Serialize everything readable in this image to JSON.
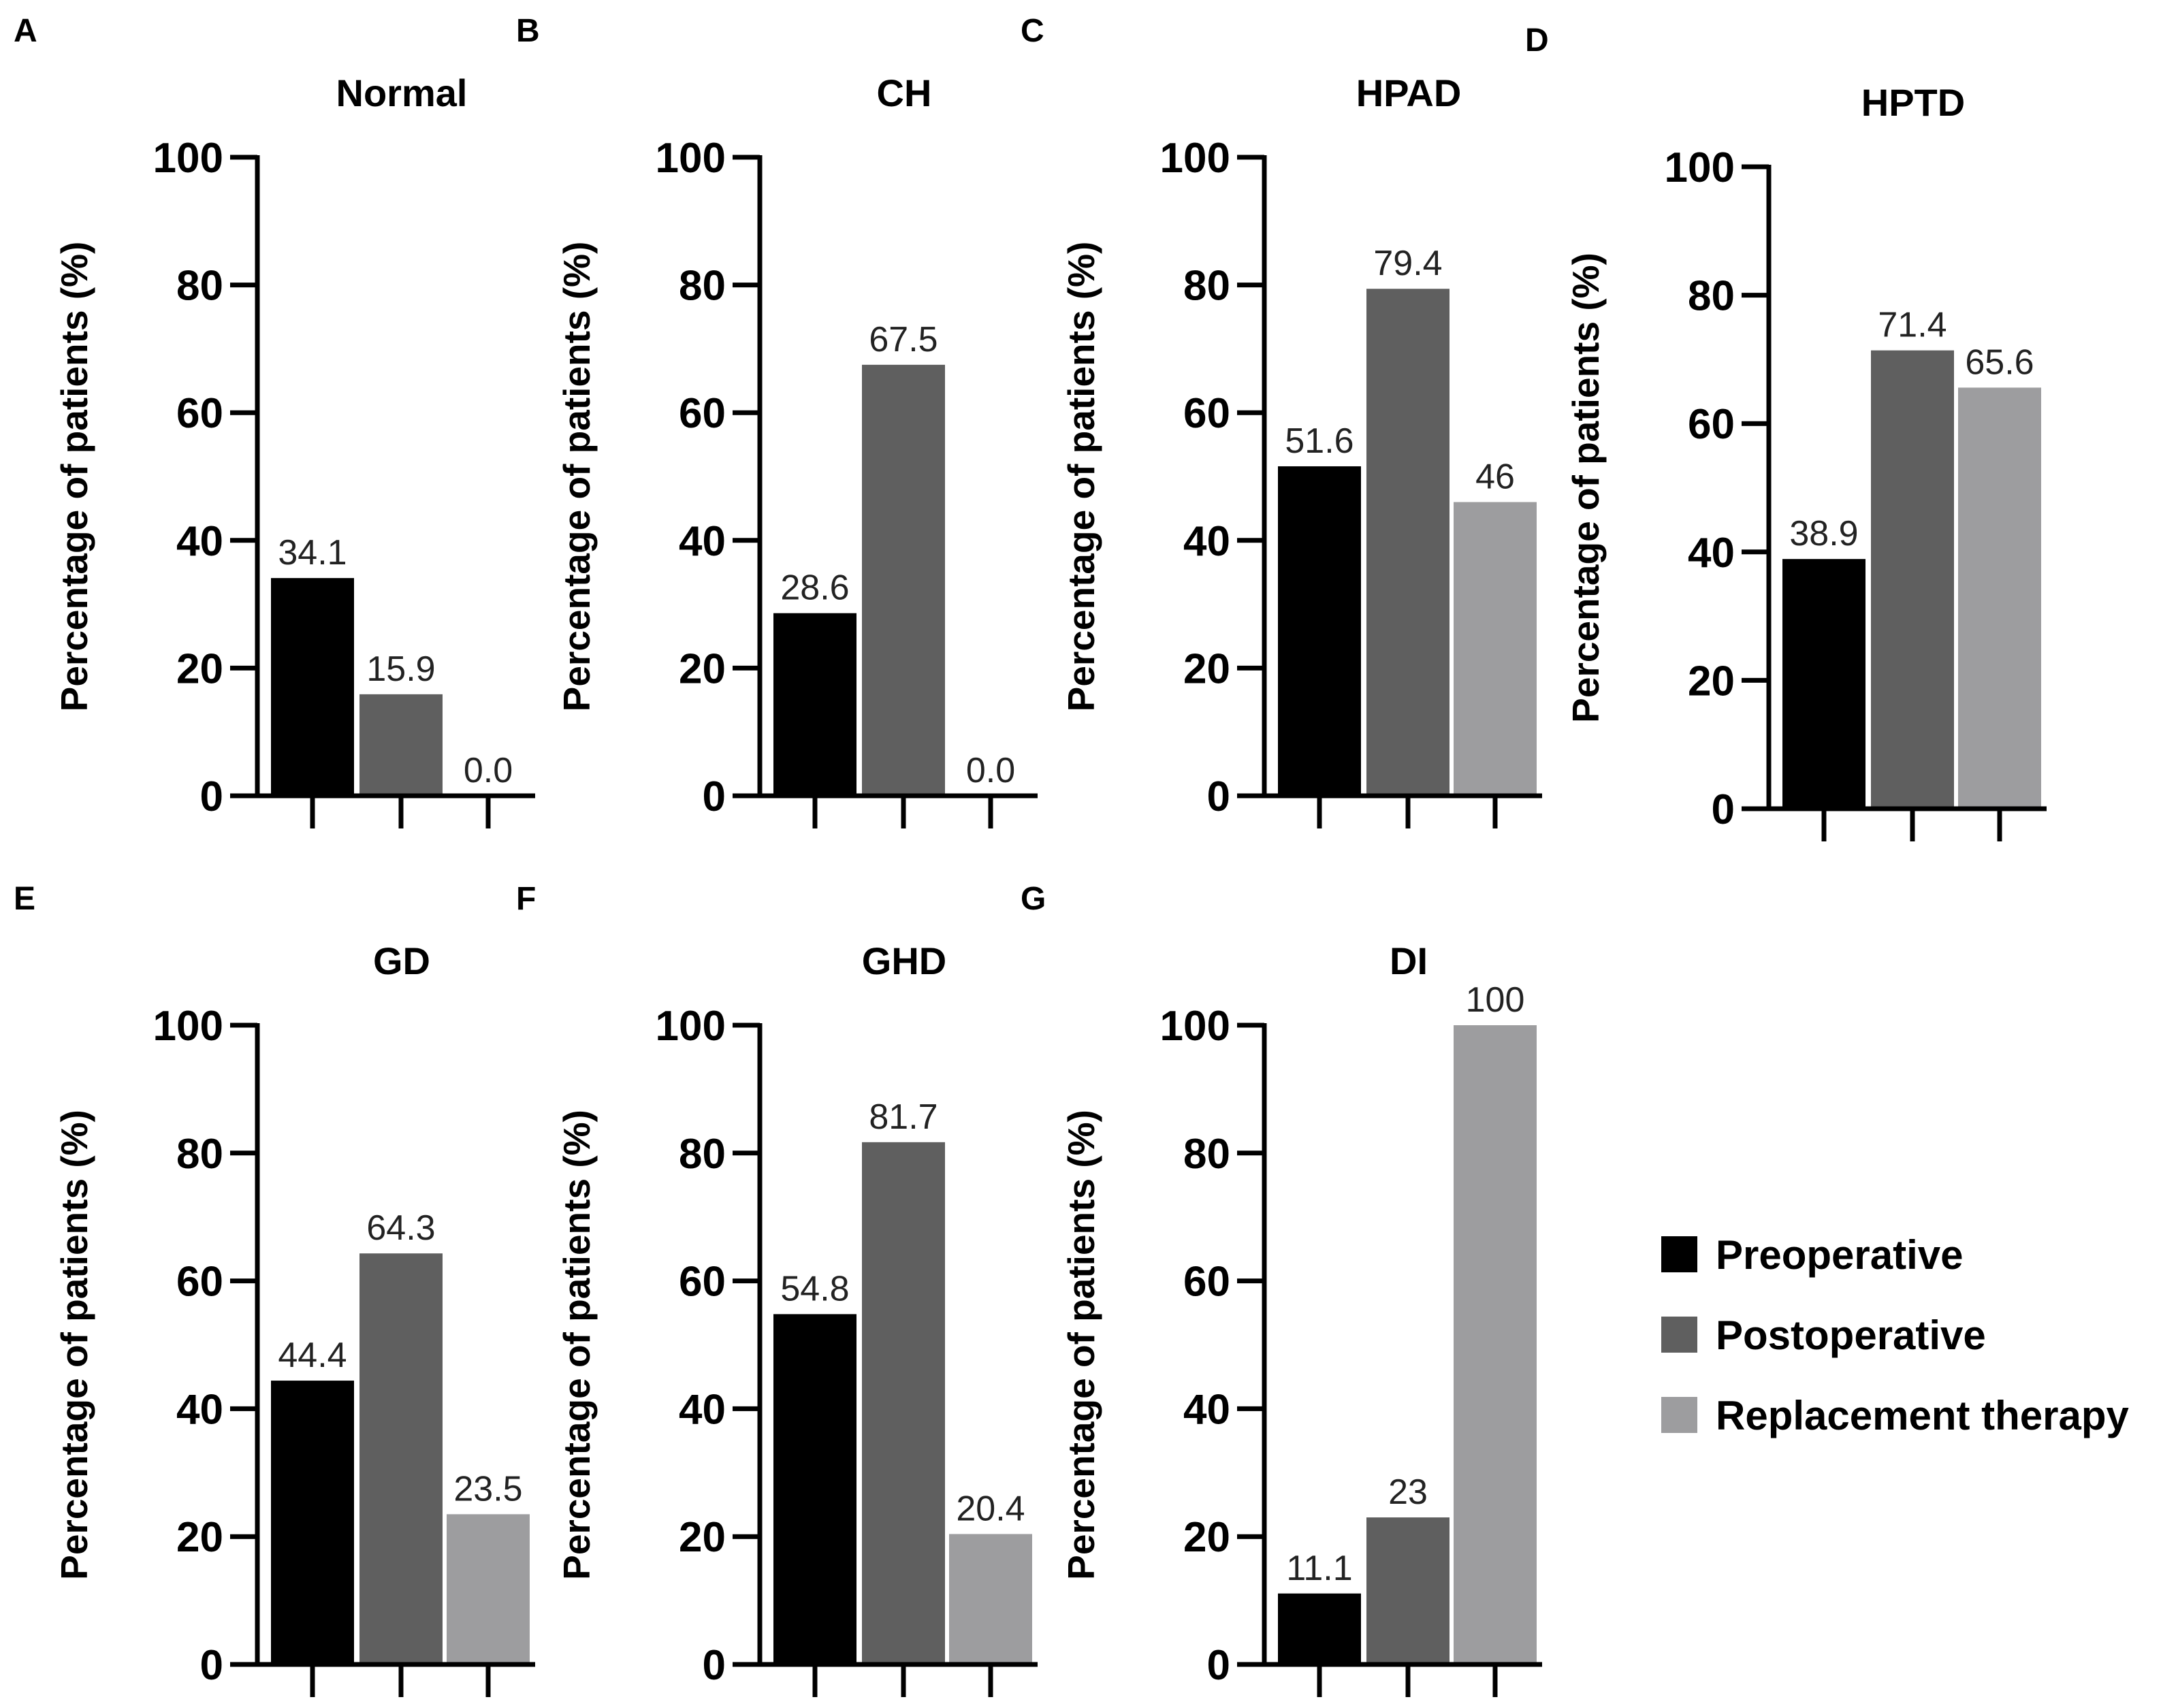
{
  "colors": {
    "Preoperative": "#000000",
    "Postoperative": "#5f5f5f",
    "Replacement therapy": "#9d9d9f"
  },
  "legend": {
    "placement": "bottom-right",
    "entries": [
      "Preoperative",
      "Postoperative",
      "Replacement therapy"
    ]
  },
  "chart_data": [
    {
      "type": "bar",
      "panel": "A",
      "title": "Normal",
      "ylabel": "Percentage of patients (%)",
      "ylim": [
        0,
        100
      ],
      "yticks": [
        "0",
        "20",
        "40",
        "60",
        "80",
        "100"
      ],
      "series": [
        {
          "name": "Preoperative",
          "values": [
            34.1
          ],
          "labels": [
            "34.1"
          ]
        },
        {
          "name": "Postoperative",
          "values": [
            15.9
          ],
          "labels": [
            "15.9"
          ]
        },
        {
          "name": "Replacement therapy",
          "values": [
            0.0
          ],
          "labels": [
            "0.0"
          ]
        }
      ]
    },
    {
      "type": "bar",
      "panel": "B",
      "title": "CH",
      "ylabel": "Percentage of patients (%)",
      "ylim": [
        0,
        100
      ],
      "yticks": [
        "0",
        "20",
        "40",
        "60",
        "80",
        "100"
      ],
      "series": [
        {
          "name": "Preoperative",
          "values": [
            28.6
          ],
          "labels": [
            "28.6"
          ]
        },
        {
          "name": "Postoperative",
          "values": [
            67.5
          ],
          "labels": [
            "67.5"
          ]
        },
        {
          "name": "Replacement therapy",
          "values": [
            0.0
          ],
          "labels": [
            "0.0"
          ]
        }
      ]
    },
    {
      "type": "bar",
      "panel": "C",
      "title": "HPAD",
      "ylabel": "Percentage of patients (%)",
      "ylim": [
        0,
        100
      ],
      "yticks": [
        "0",
        "20",
        "40",
        "60",
        "80",
        "100"
      ],
      "series": [
        {
          "name": "Preoperative",
          "values": [
            51.6
          ],
          "labels": [
            "51.6"
          ]
        },
        {
          "name": "Postoperative",
          "values": [
            79.4
          ],
          "labels": [
            "79.4"
          ]
        },
        {
          "name": "Replacement therapy",
          "values": [
            46
          ],
          "labels": [
            "46"
          ]
        }
      ]
    },
    {
      "type": "bar",
      "panel": "D",
      "title": "HPTD",
      "ylabel": "Percentage of patients (%)",
      "ylim": [
        0,
        100
      ],
      "yticks": [
        "0",
        "20",
        "40",
        "60",
        "80",
        "100"
      ],
      "series": [
        {
          "name": "Preoperative",
          "values": [
            38.9
          ],
          "labels": [
            "38.9"
          ]
        },
        {
          "name": "Postoperative",
          "values": [
            71.4
          ],
          "labels": [
            "71.4"
          ]
        },
        {
          "name": "Replacement therapy",
          "values": [
            65.6
          ],
          "labels": [
            "65.6"
          ]
        }
      ]
    },
    {
      "type": "bar",
      "panel": "E",
      "title": "GD",
      "ylabel": "Percentage of patients (%)",
      "ylim": [
        0,
        100
      ],
      "yticks": [
        "0",
        "20",
        "40",
        "60",
        "80",
        "100"
      ],
      "series": [
        {
          "name": "Preoperative",
          "values": [
            44.4
          ],
          "labels": [
            "44.4"
          ]
        },
        {
          "name": "Postoperative",
          "values": [
            64.3
          ],
          "labels": [
            "64.3"
          ]
        },
        {
          "name": "Replacement therapy",
          "values": [
            23.5
          ],
          "labels": [
            "23.5"
          ]
        }
      ]
    },
    {
      "type": "bar",
      "panel": "F",
      "title": "GHD",
      "ylabel": "Percentage of patients (%)",
      "ylim": [
        0,
        100
      ],
      "yticks": [
        "0",
        "20",
        "40",
        "60",
        "80",
        "100"
      ],
      "series": [
        {
          "name": "Preoperative",
          "values": [
            54.8
          ],
          "labels": [
            "54.8"
          ]
        },
        {
          "name": "Postoperative",
          "values": [
            81.7
          ],
          "labels": [
            "81.7"
          ]
        },
        {
          "name": "Replacement therapy",
          "values": [
            20.4
          ],
          "labels": [
            "20.4"
          ]
        }
      ]
    },
    {
      "type": "bar",
      "panel": "G",
      "title": "DI",
      "ylabel": "Percentage of patients (%)",
      "ylim": [
        0,
        100
      ],
      "yticks": [
        "0",
        "20",
        "40",
        "60",
        "80",
        "100"
      ],
      "series": [
        {
          "name": "Preoperative",
          "values": [
            11.1
          ],
          "labels": [
            "11.1"
          ]
        },
        {
          "name": "Postoperative",
          "values": [
            23
          ],
          "labels": [
            "23"
          ]
        },
        {
          "name": "Replacement therapy",
          "values": [
            100
          ],
          "labels": [
            "100"
          ]
        }
      ]
    }
  ]
}
